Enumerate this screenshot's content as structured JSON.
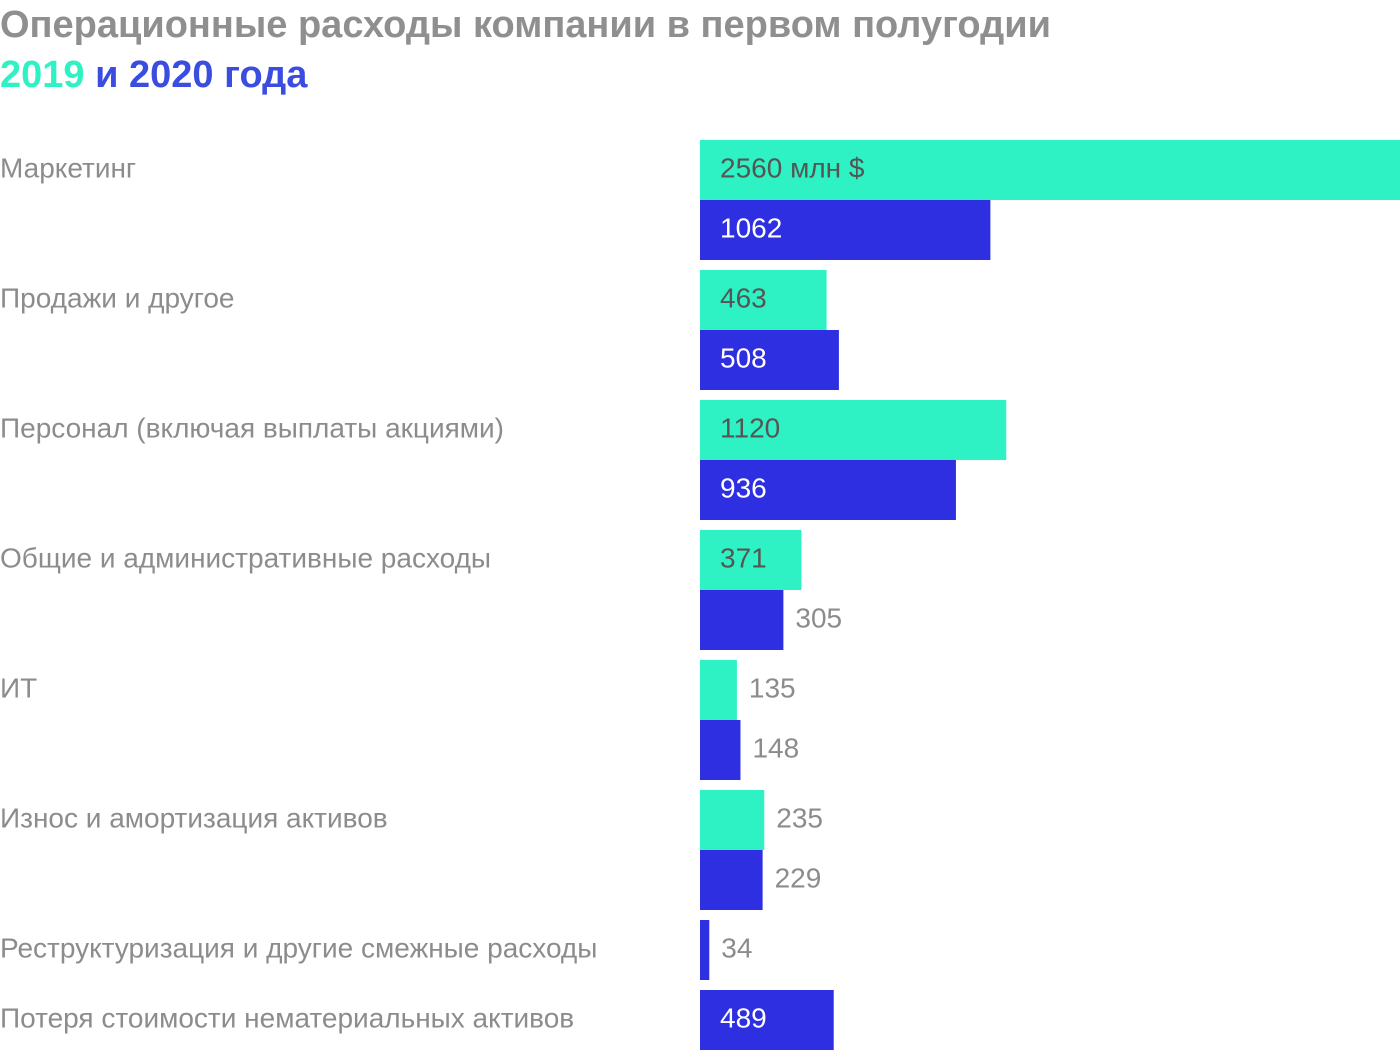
{
  "title": {
    "line1": "Операционные расходы компании в первом полугодии",
    "year_a": "2019",
    "conj": " и ",
    "year_b": "2020",
    "suffix": " года"
  },
  "colors": {
    "series_2019": "#2ff2c4",
    "series_2020": "#2f2fe2",
    "title_gray": "#8f8f8f",
    "title_blue": "#3b4de0",
    "label_gray": "#8c8c8c",
    "label_dark": "#555555",
    "label_white": "#ffffff"
  },
  "chart_data": {
    "type": "bar",
    "orientation": "horizontal",
    "title": "Операционные расходы компании в первом полугодии 2019 и 2020 года",
    "unit": "млн $",
    "categories": [
      "Маркетинг",
      "Продажи и другое",
      "Персонал (включая выплаты акциями)",
      "Общие и административные расходы",
      "ИТ",
      "Износ и амортизация активов",
      "Реструктуризация и другие смежные расходы",
      "Потеря стоимости нематериальных активов"
    ],
    "series": [
      {
        "name": "2019",
        "values": [
          2560,
          463,
          1120,
          371,
          135,
          235,
          null,
          null
        ]
      },
      {
        "name": "2020",
        "values": [
          1062,
          508,
          936,
          305,
          148,
          229,
          34,
          489
        ]
      }
    ],
    "value_labels": [
      [
        "2560 млн $",
        "463",
        "1120",
        "371",
        "135",
        "235",
        null,
        null
      ],
      [
        "1062",
        "508",
        "936",
        "305",
        "148",
        "229",
        "34",
        "489"
      ]
    ],
    "xlim": [
      0,
      2560
    ],
    "grid": false
  }
}
